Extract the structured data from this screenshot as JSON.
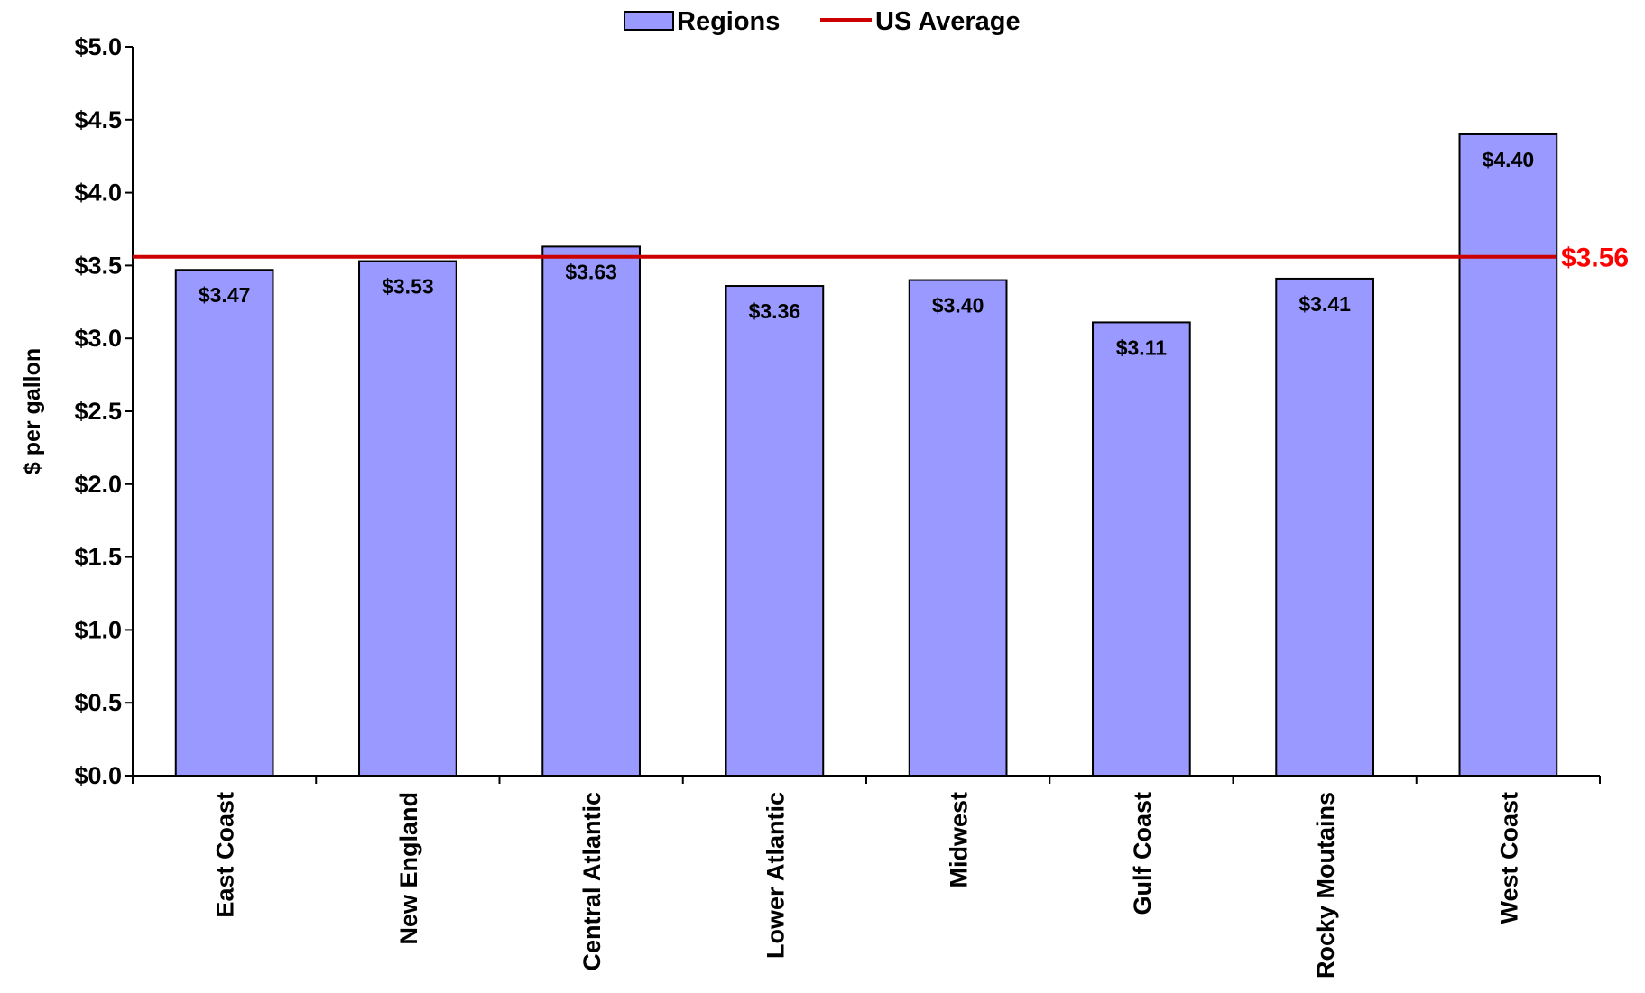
{
  "legend": {
    "bars_label": "Regions",
    "line_label": "US Average"
  },
  "colors": {
    "bar_fill": "#9999ff",
    "bar_stroke": "#000000",
    "average_line": "#cc0000",
    "average_label": "#ff0000"
  },
  "chart_data": {
    "type": "bar",
    "title": "",
    "xlabel": "",
    "ylabel": "$ per gallon",
    "ylim": [
      0,
      5
    ],
    "yticks": [
      0,
      0.5,
      1,
      1.5,
      2,
      2.5,
      3,
      3.5,
      4,
      4.5,
      5
    ],
    "ytick_labels": [
      "$0.0",
      "$0.5",
      "$1.0",
      "$1.5",
      "$2.0",
      "$2.5",
      "$3.0",
      "$3.5",
      "$4.0",
      "$4.5",
      "$5.0"
    ],
    "grid": false,
    "legend_position": "top-center",
    "categories": [
      "East Coast",
      "New England",
      "Central Atlantic",
      "Lower Atlantic",
      "Midwest",
      "Gulf Coast",
      "Rocky Moutains",
      "West Coast"
    ],
    "series": [
      {
        "name": "Regions",
        "values": [
          3.47,
          3.53,
          3.63,
          3.36,
          3.4,
          3.11,
          3.41,
          4.4
        ],
        "labels": [
          "$3.47",
          "$3.53",
          "$3.63",
          "$3.36",
          "$3.40",
          "$3.11",
          "$3.41",
          "$4.40"
        ]
      }
    ],
    "reference_line": {
      "name": "US Average",
      "value": 3.56,
      "label": "$3.56"
    }
  }
}
